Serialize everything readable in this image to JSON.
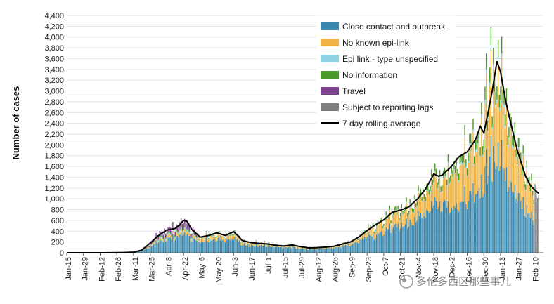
{
  "chart_data": {
    "type": "bar",
    "stacked": true,
    "title": "",
    "xlabel": "",
    "ylabel": "Number of cases",
    "ylim": [
      0,
      4400
    ],
    "y_ticks": [
      "0",
      "200",
      "400",
      "600",
      "800",
      "1,000",
      "1,200",
      "1,400",
      "1,600",
      "1,800",
      "2,000",
      "2,200",
      "2,400",
      "2,600",
      "2,800",
      "3,000",
      "3,200",
      "3,400",
      "3,600",
      "3,800",
      "4,000",
      "4,200",
      "4,400"
    ],
    "y_tick_values": [
      0,
      200,
      400,
      600,
      800,
      1000,
      1200,
      1400,
      1600,
      1800,
      2000,
      2200,
      2400,
      2600,
      2800,
      3000,
      3200,
      3400,
      3600,
      3800,
      4000,
      4200,
      4400
    ],
    "grid": "horizontal",
    "legend_position": "top-right",
    "x_ticks": [
      "Jan-15",
      "Jan-29",
      "Feb-12",
      "Feb-26",
      "Mar-11",
      "Mar-25",
      "Apr-8",
      "Apr-22",
      "May-6",
      "May-20",
      "Jun-3",
      "Jun-17",
      "Jul-1",
      "Jul-15",
      "Jul-29",
      "Aug-12",
      "Aug-26",
      "Sep-9",
      "Sep-23",
      "Oct-7",
      "Oct-21",
      "Nov-4",
      "Nov-18",
      "Dec-2",
      "Dec-16",
      "Dec-30",
      "Jan-13",
      "Jan-27",
      "Feb-10"
    ],
    "x_tick_day_offsets": [
      0,
      14,
      28,
      42,
      56,
      70,
      84,
      98,
      112,
      126,
      140,
      154,
      168,
      182,
      196,
      210,
      224,
      238,
      252,
      266,
      280,
      294,
      308,
      322,
      336,
      350,
      364,
      378,
      392
    ],
    "series": [
      {
        "name": "Close contact and outbreak",
        "color": "#3a87ad"
      },
      {
        "name": "No known epi-link",
        "color": "#f0b546"
      },
      {
        "name": "Epi link - type unspecified",
        "color": "#8fd3e6"
      },
      {
        "name": "No information",
        "color": "#4a9a2a"
      },
      {
        "name": "Travel",
        "color": "#7b3f8c"
      },
      {
        "name": "Subject to reporting lags",
        "color": "#7f7f7f"
      }
    ],
    "line_series": {
      "name": "7 day rolling average",
      "color": "#000000"
    },
    "daily_total_knots": [
      [
        0,
        0
      ],
      [
        14,
        0
      ],
      [
        28,
        1
      ],
      [
        42,
        3
      ],
      [
        56,
        15
      ],
      [
        63,
        60
      ],
      [
        70,
        180
      ],
      [
        77,
        330
      ],
      [
        84,
        440
      ],
      [
        91,
        450
      ],
      [
        98,
        600
      ],
      [
        105,
        430
      ],
      [
        112,
        300
      ],
      [
        119,
        330
      ],
      [
        126,
        370
      ],
      [
        133,
        330
      ],
      [
        140,
        380
      ],
      [
        147,
        220
      ],
      [
        154,
        190
      ],
      [
        161,
        180
      ],
      [
        168,
        170
      ],
      [
        175,
        150
      ],
      [
        182,
        130
      ],
      [
        189,
        140
      ],
      [
        196,
        110
      ],
      [
        203,
        90
      ],
      [
        210,
        100
      ],
      [
        217,
        110
      ],
      [
        224,
        130
      ],
      [
        231,
        170
      ],
      [
        238,
        210
      ],
      [
        245,
        300
      ],
      [
        252,
        420
      ],
      [
        259,
        520
      ],
      [
        266,
        620
      ],
      [
        273,
        760
      ],
      [
        280,
        800
      ],
      [
        287,
        860
      ],
      [
        294,
        1000
      ],
      [
        301,
        1200
      ],
      [
        308,
        1470
      ],
      [
        315,
        1450
      ],
      [
        322,
        1600
      ],
      [
        329,
        1800
      ],
      [
        336,
        1880
      ],
      [
        343,
        2100
      ],
      [
        350,
        2450
      ],
      [
        357,
        3000
      ],
      [
        361,
        3450
      ],
      [
        364,
        3400
      ],
      [
        368,
        3000
      ],
      [
        371,
        2700
      ],
      [
        378,
        2000
      ],
      [
        385,
        1500
      ],
      [
        392,
        1200
      ],
      [
        396,
        1050
      ]
    ],
    "rolling_average_knots": [
      [
        0,
        0
      ],
      [
        28,
        0
      ],
      [
        42,
        2
      ],
      [
        56,
        10
      ],
      [
        63,
        50
      ],
      [
        70,
        180
      ],
      [
        77,
        320
      ],
      [
        84,
        420
      ],
      [
        91,
        450
      ],
      [
        95,
        520
      ],
      [
        98,
        600
      ],
      [
        101,
        580
      ],
      [
        105,
        430
      ],
      [
        112,
        290
      ],
      [
        119,
        320
      ],
      [
        126,
        370
      ],
      [
        133,
        320
      ],
      [
        140,
        390
      ],
      [
        144,
        310
      ],
      [
        147,
        230
      ],
      [
        154,
        190
      ],
      [
        161,
        175
      ],
      [
        168,
        165
      ],
      [
        175,
        140
      ],
      [
        182,
        125
      ],
      [
        189,
        145
      ],
      [
        196,
        115
      ],
      [
        203,
        90
      ],
      [
        210,
        95
      ],
      [
        217,
        105
      ],
      [
        224,
        120
      ],
      [
        231,
        160
      ],
      [
        238,
        200
      ],
      [
        245,
        290
      ],
      [
        252,
        410
      ],
      [
        259,
        520
      ],
      [
        266,
        610
      ],
      [
        273,
        750
      ],
      [
        280,
        790
      ],
      [
        287,
        850
      ],
      [
        294,
        990
      ],
      [
        301,
        1180
      ],
      [
        308,
        1460
      ],
      [
        312,
        1420
      ],
      [
        315,
        1440
      ],
      [
        322,
        1580
      ],
      [
        329,
        1780
      ],
      [
        336,
        1870
      ],
      [
        343,
        2100
      ],
      [
        347,
        2340
      ],
      [
        350,
        2220
      ],
      [
        354,
        2650
      ],
      [
        357,
        3000
      ],
      [
        361,
        3550
      ],
      [
        364,
        3350
      ],
      [
        368,
        2850
      ],
      [
        371,
        2550
      ],
      [
        378,
        1900
      ],
      [
        385,
        1420
      ],
      [
        389,
        1250
      ],
      [
        392,
        1180
      ],
      [
        396,
        1100
      ]
    ],
    "composition": {
      "mar_apr": [
        0.6,
        0.1,
        0.05,
        0.05,
        0.2
      ],
      "may_sep": [
        0.72,
        0.2,
        0.03,
        0.05,
        0.0
      ],
      "oct_nov": [
        0.62,
        0.28,
        0.02,
        0.08,
        0.0
      ],
      "dec_feb": [
        0.52,
        0.38,
        0.02,
        0.08,
        0.0
      ]
    },
    "spikes": [
      [
        356,
        4180
      ],
      [
        352,
        3700
      ],
      [
        358,
        3800
      ]
    ]
  },
  "watermark_text": "多伦多西区那些事儿"
}
